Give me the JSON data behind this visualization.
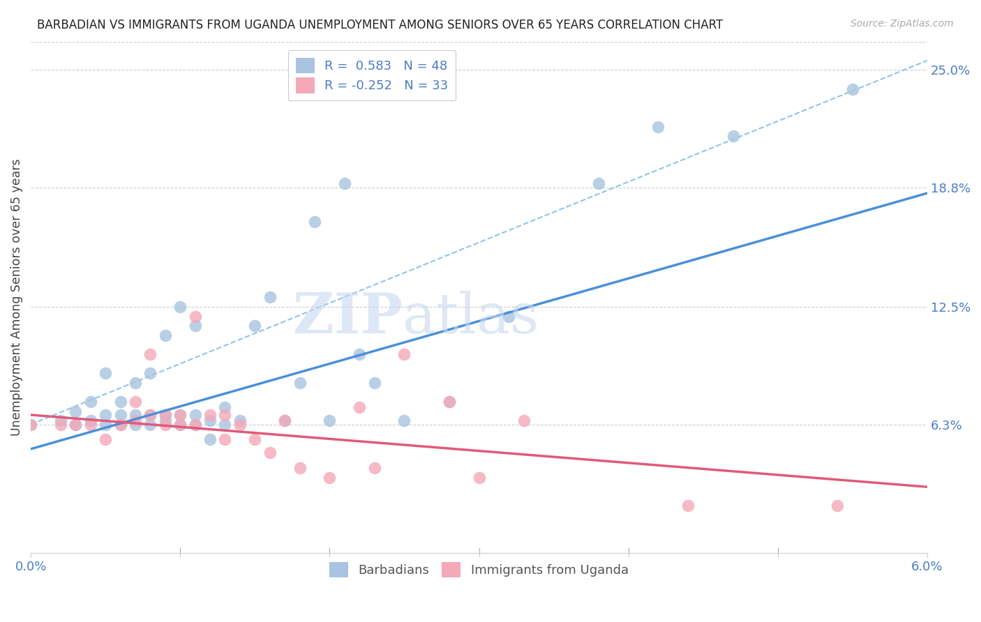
{
  "title": "BARBADIAN VS IMMIGRANTS FROM UGANDA UNEMPLOYMENT AMONG SENIORS OVER 65 YEARS CORRELATION CHART",
  "source": "Source: ZipAtlas.com",
  "ylabel": "Unemployment Among Seniors over 65 years",
  "right_yticklabels": [
    "6.3%",
    "12.5%",
    "18.8%",
    "25.0%"
  ],
  "right_ytick_vals": [
    0.063,
    0.125,
    0.188,
    0.25
  ],
  "xmin": 0.0,
  "xmax": 0.06,
  "ymin": -0.005,
  "ymax": 0.265,
  "barbadian_color": "#a8c4e0",
  "uganda_color": "#f4a8b8",
  "trendline_blue": "#4a90d9",
  "trendline_pink": "#e05a7a",
  "trendline_dashed_color": "#90c4e8",
  "watermark_zip": "ZIP",
  "watermark_atlas": "atlas",
  "watermark_color": "#c8d8f0",
  "barbadian_x": [
    0.0,
    0.002,
    0.003,
    0.003,
    0.004,
    0.004,
    0.005,
    0.005,
    0.005,
    0.006,
    0.006,
    0.006,
    0.007,
    0.007,
    0.007,
    0.008,
    0.008,
    0.008,
    0.009,
    0.009,
    0.009,
    0.01,
    0.01,
    0.01,
    0.011,
    0.011,
    0.011,
    0.012,
    0.012,
    0.013,
    0.013,
    0.014,
    0.015,
    0.016,
    0.017,
    0.018,
    0.019,
    0.02,
    0.021,
    0.022,
    0.023,
    0.025,
    0.028,
    0.032,
    0.038,
    0.042,
    0.047,
    0.055
  ],
  "barbadian_y": [
    0.063,
    0.065,
    0.063,
    0.07,
    0.065,
    0.075,
    0.063,
    0.068,
    0.09,
    0.063,
    0.068,
    0.075,
    0.063,
    0.068,
    0.085,
    0.063,
    0.068,
    0.09,
    0.065,
    0.068,
    0.11,
    0.063,
    0.068,
    0.125,
    0.063,
    0.068,
    0.115,
    0.055,
    0.065,
    0.063,
    0.072,
    0.065,
    0.115,
    0.13,
    0.065,
    0.085,
    0.17,
    0.065,
    0.19,
    0.1,
    0.085,
    0.065,
    0.075,
    0.12,
    0.19,
    0.22,
    0.215,
    0.24
  ],
  "uganda_x": [
    0.0,
    0.002,
    0.003,
    0.004,
    0.005,
    0.006,
    0.007,
    0.007,
    0.008,
    0.008,
    0.009,
    0.009,
    0.01,
    0.01,
    0.011,
    0.011,
    0.012,
    0.013,
    0.013,
    0.014,
    0.015,
    0.016,
    0.017,
    0.018,
    0.02,
    0.022,
    0.023,
    0.025,
    0.028,
    0.03,
    0.033,
    0.044,
    0.054
  ],
  "uganda_y": [
    0.063,
    0.063,
    0.063,
    0.063,
    0.055,
    0.063,
    0.065,
    0.075,
    0.068,
    0.1,
    0.063,
    0.068,
    0.063,
    0.068,
    0.063,
    0.12,
    0.068,
    0.055,
    0.068,
    0.063,
    0.055,
    0.048,
    0.065,
    0.04,
    0.035,
    0.072,
    0.04,
    0.1,
    0.075,
    0.035,
    0.065,
    0.02,
    0.02
  ],
  "blue_trend_x0": 0.0,
  "blue_trend_x1": 0.06,
  "blue_trend_y0": 0.05,
  "blue_trend_y1": 0.185,
  "pink_trend_x0": 0.0,
  "pink_trend_x1": 0.06,
  "pink_trend_y0": 0.068,
  "pink_trend_y1": 0.03,
  "dashed_trend_x0": 0.0,
  "dashed_trend_x1": 0.06,
  "dashed_trend_y0": 0.063,
  "dashed_trend_y1": 0.255
}
